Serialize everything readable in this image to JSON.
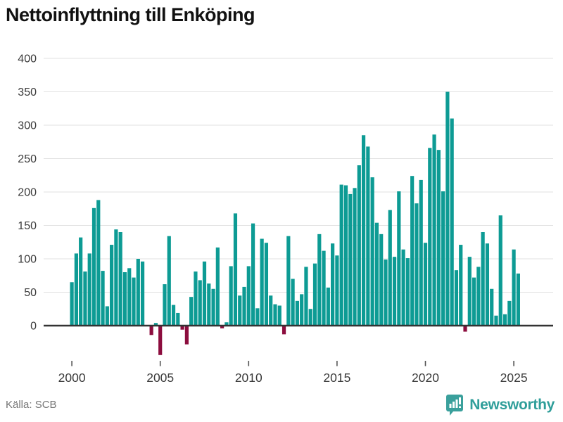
{
  "title": "Nettoinflyttning till Enköping",
  "source": "Källa: SCB",
  "logo": {
    "brand": "Newsworthy",
    "icon": "newsworthy-pin-chart-icon"
  },
  "colors": {
    "positive": "#0d9b94",
    "negative": "#8c0d3e",
    "grid": "#e2e2e2",
    "axis": "#333333",
    "tick": "#555555",
    "tick_label": "#3a3a3a",
    "title": "#111111",
    "source_text": "#767676",
    "brand": "#2f9e9a"
  },
  "chart_data": {
    "type": "bar",
    "title": "Nettoinflyttning till Enköping",
    "unit": "persons, net migration per quarter",
    "frequency": "quarterly",
    "start": "2000-Q1",
    "end": "2025-Q2",
    "x_tick_labels": [
      "2000",
      "2005",
      "2010",
      "2015",
      "2020",
      "2025"
    ],
    "y_ticks": [
      0,
      50,
      100,
      150,
      200,
      250,
      300,
      350,
      400
    ],
    "y_tick_labels": [
      "0",
      "50",
      "100",
      "150",
      "200",
      "250",
      "300",
      "350",
      "400"
    ],
    "ylim": [
      -60,
      400
    ],
    "grid": "horizontal",
    "legend": "none",
    "values": [
      65,
      108,
      132,
      81,
      108,
      176,
      188,
      82,
      29,
      121,
      144,
      140,
      80,
      86,
      72,
      100,
      96,
      0,
      -14,
      4,
      -44,
      62,
      134,
      31,
      19,
      -6,
      -28,
      43,
      81,
      68,
      96,
      63,
      55,
      117,
      -4,
      5,
      89,
      168,
      45,
      58,
      89,
      153,
      26,
      130,
      124,
      45,
      32,
      30,
      -13,
      134,
      70,
      37,
      47,
      88,
      25,
      93,
      137,
      112,
      57,
      123,
      105,
      211,
      210,
      197,
      206,
      240,
      285,
      268,
      222,
      154,
      137,
      99,
      173,
      103,
      201,
      114,
      101,
      224,
      183,
      218,
      124,
      266,
      286,
      263,
      201,
      350,
      310,
      83,
      121,
      -9,
      103,
      72,
      88,
      140,
      123,
      55,
      15,
      165,
      17,
      37,
      114,
      78
    ]
  }
}
